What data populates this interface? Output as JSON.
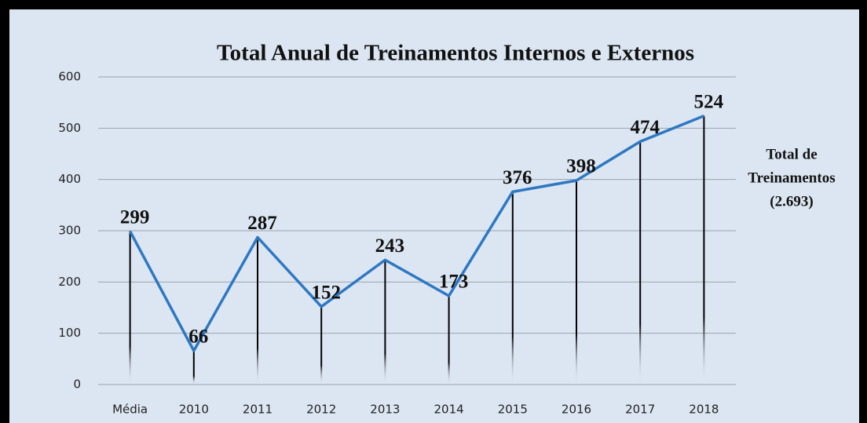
{
  "chart_data": {
    "type": "line",
    "title": "Total Anual de Treinamentos Internos e Externos",
    "annotation": [
      "Total de",
      "Treinamentos",
      "(2.693)"
    ],
    "categories": [
      "Média",
      "2010",
      "2011",
      "2012",
      "2013",
      "2014",
      "2015",
      "2016",
      "2017",
      "2018"
    ],
    "values": [
      299,
      66,
      287,
      152,
      243,
      173,
      376,
      398,
      474,
      524
    ],
    "color": "#2e78c2",
    "ylim": [
      0,
      600
    ],
    "yticks": [
      0,
      100,
      200,
      300,
      400,
      500,
      600
    ],
    "grid": true,
    "drop_lines": true
  }
}
